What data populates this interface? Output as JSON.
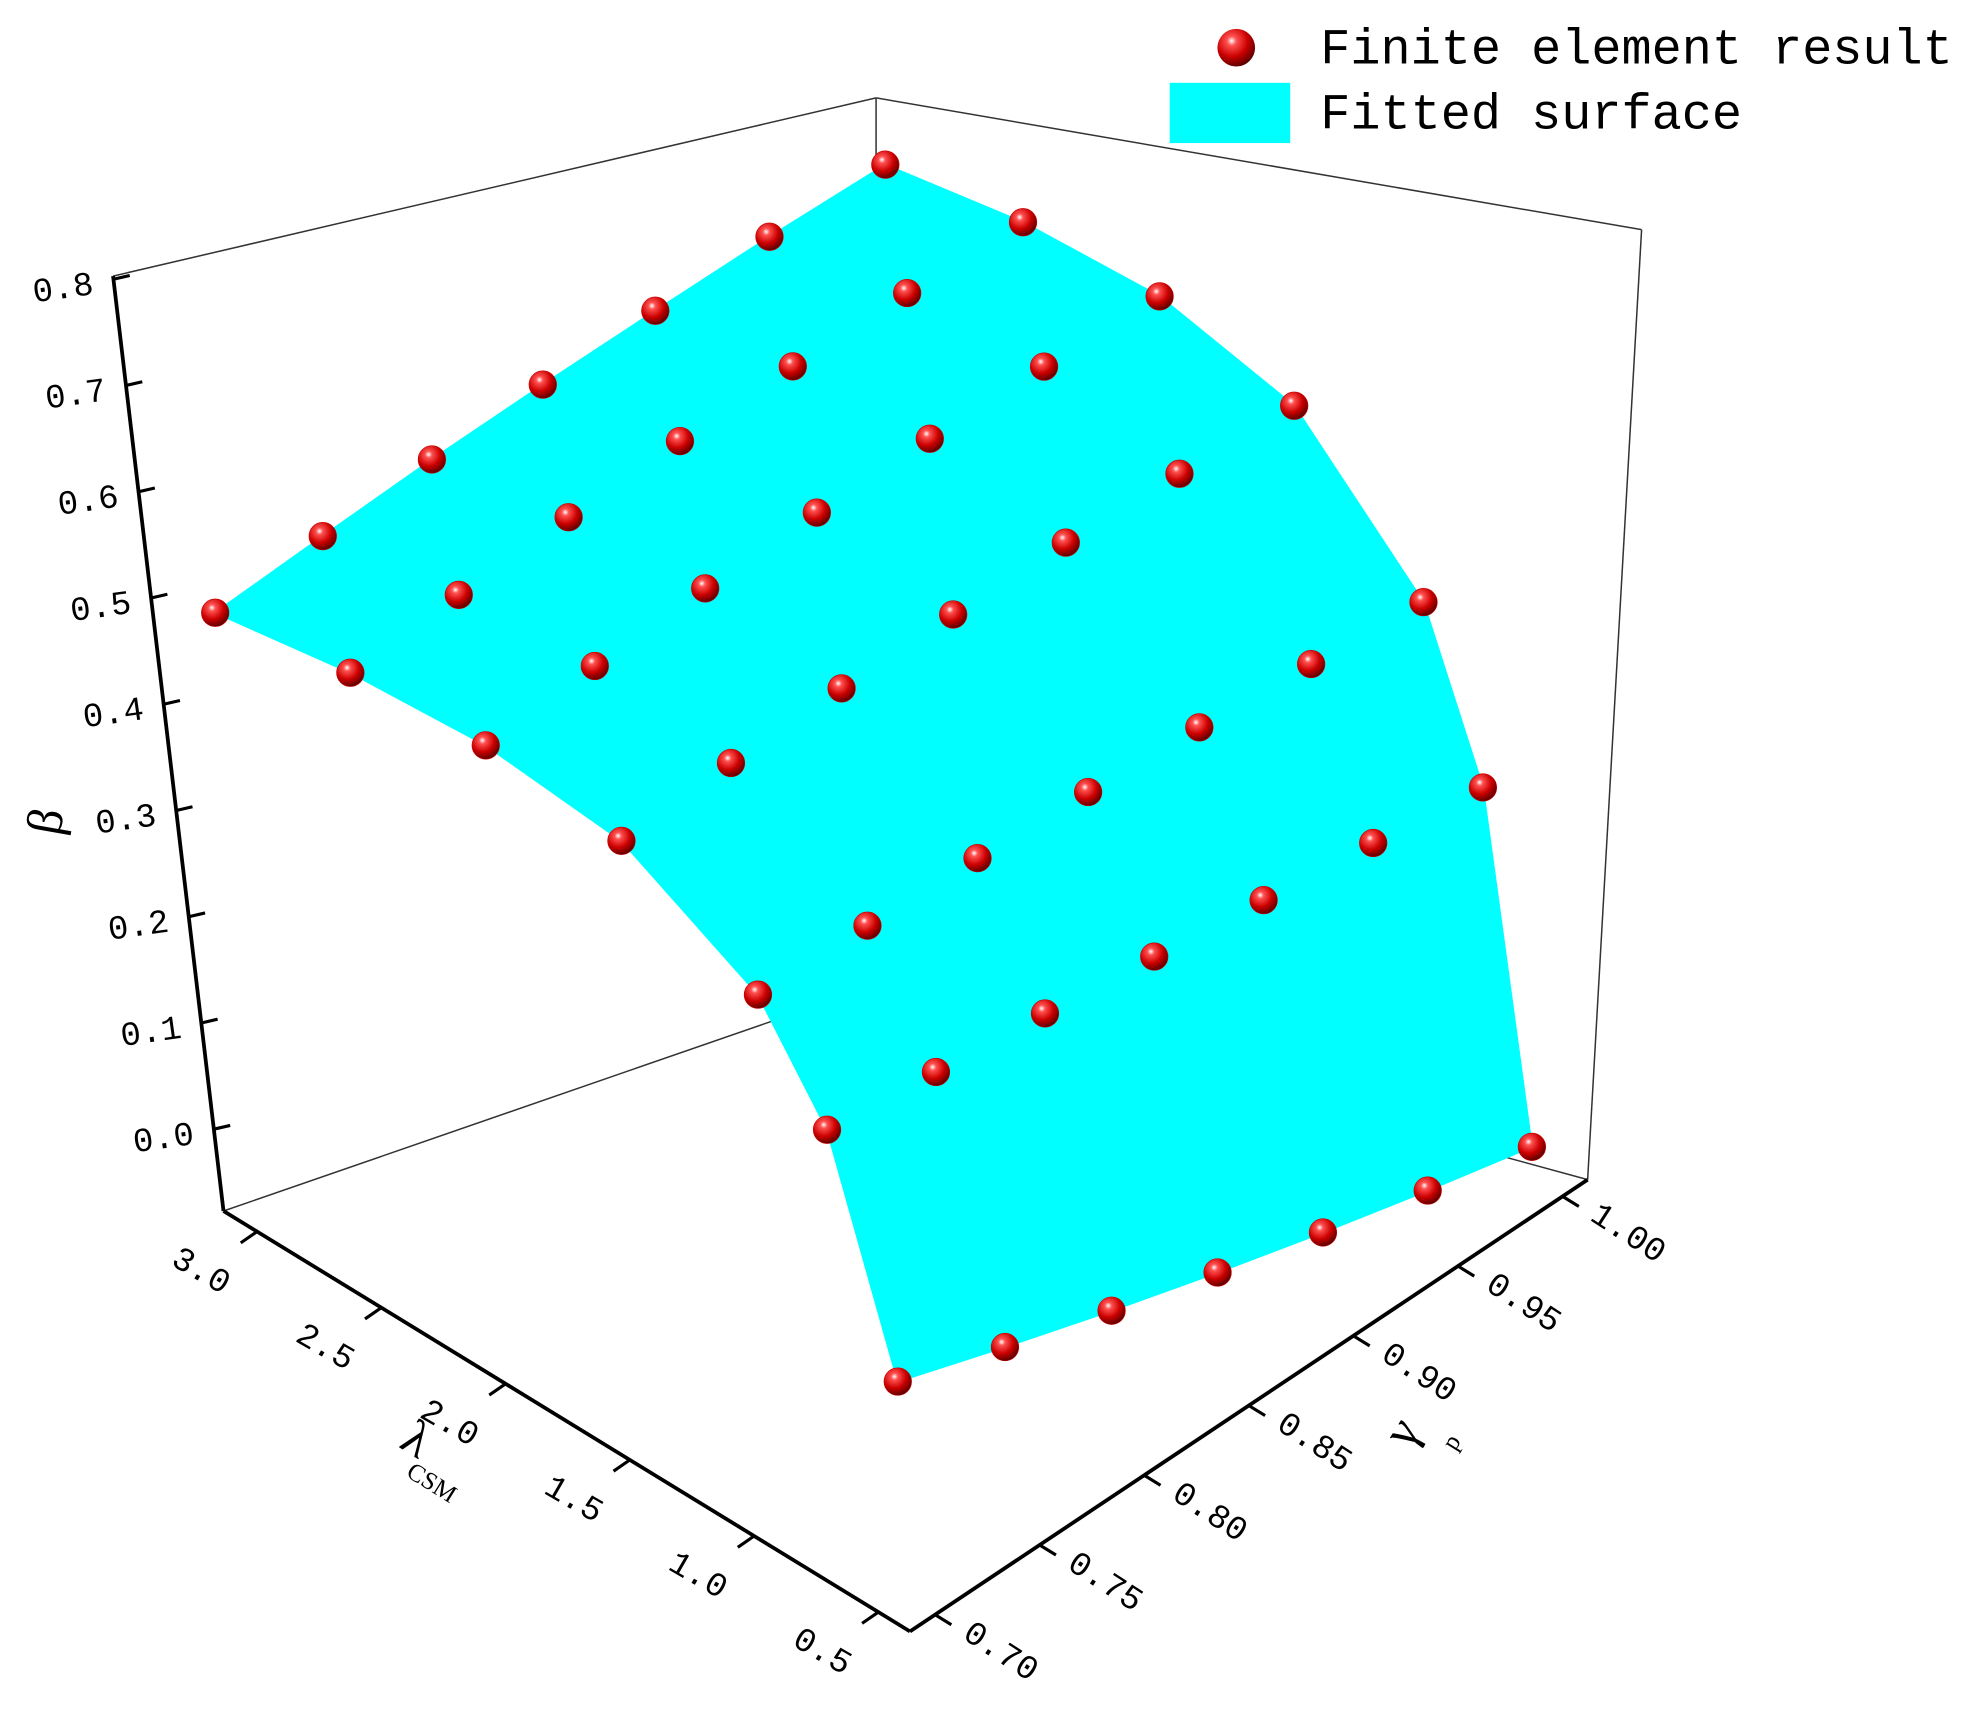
{
  "chart_data": {
    "type": "surface3d",
    "xlabel": {
      "symbol": "λ",
      "subscript": "CSM"
    },
    "ylabel": {
      "symbol": "γ",
      "subscript": "p"
    },
    "zlabel": "β",
    "x": [
      0.5,
      0.75,
      1.0,
      1.5,
      2.0,
      2.5,
      3.0
    ],
    "y": [
      0.7,
      0.75,
      0.8,
      0.85,
      0.9,
      0.95,
      1.0
    ],
    "xlim": [
      0.373,
      3.135
    ],
    "ylim": [
      0.688,
      1.012
    ],
    "zlim": [
      -0.077,
      0.803
    ],
    "xticks": [
      0.5,
      {
        "value": 1.0,
        "label": "1.0"
      },
      1.5,
      {
        "value": 2.0,
        "label": "2.0"
      },
      2.5,
      {
        "value": 3.0,
        "label": "3.0"
      }
    ],
    "yticks": [
      {
        "value": 0.7,
        "label": "0.70"
      },
      0.75,
      {
        "value": 0.8,
        "label": "0.80"
      },
      0.85,
      {
        "value": 0.9,
        "label": "0.90"
      },
      0.95,
      {
        "value": 1.0,
        "label": "1.00"
      }
    ],
    "zticks": [
      {
        "value": 0.0,
        "label": "0.0"
      },
      0.1,
      0.2,
      0.3,
      0.4,
      0.5,
      0.6,
      0.7,
      0.8
    ],
    "series": [
      {
        "name": "Finite element result",
        "color": "#cc0000",
        "marker": "sphere",
        "values": [
          [
            0.08,
            0.06,
            0.04,
            0.02,
            0.0,
            -0.02,
            -0.04
          ],
          [
            0.244,
            0.249,
            0.255,
            0.26,
            0.265,
            0.271,
            0.276
          ],
          [
            0.326,
            0.344,
            0.362,
            0.38,
            0.398,
            0.416,
            0.434
          ],
          [
            0.408,
            0.439,
            0.469,
            0.5,
            0.531,
            0.561,
            0.592
          ],
          [
            0.449,
            0.486,
            0.523,
            0.56,
            0.597,
            0.634,
            0.671
          ],
          [
            0.474,
            0.514,
            0.555,
            0.596,
            0.637,
            0.678,
            0.718
          ],
          [
            0.49,
            0.533,
            0.577,
            0.62,
            0.663,
            0.707,
            0.75
          ]
        ]
      },
      {
        "name": "Fitted surface",
        "color": "#00ffff",
        "marker": "surface",
        "source": 0
      }
    ]
  }
}
